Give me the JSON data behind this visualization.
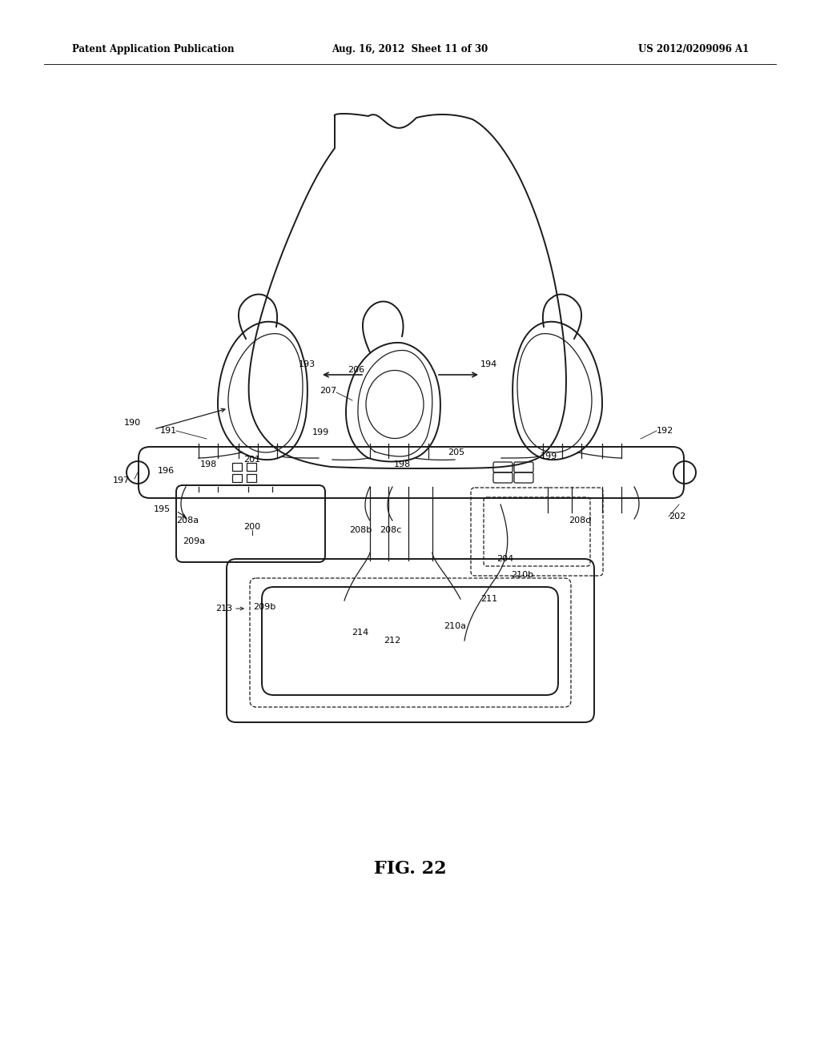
{
  "bg_color": "#ffffff",
  "line_color": "#1a1a1a",
  "header_left": "Patent Application Publication",
  "header_mid": "Aug. 16, 2012  Sheet 11 of 30",
  "header_right": "US 2012/0209096 A1",
  "figure_label": "FIG. 22"
}
